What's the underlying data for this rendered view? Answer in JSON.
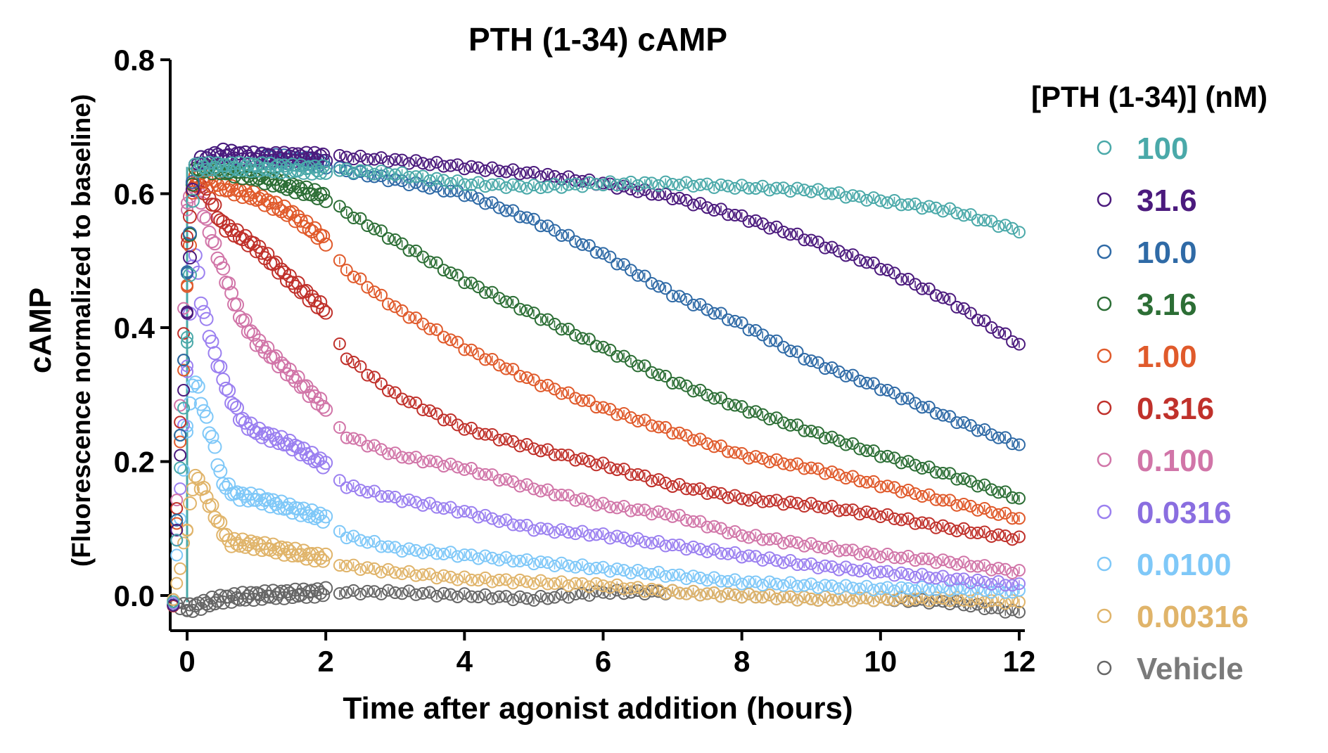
{
  "chart_data": {
    "type": "scatter",
    "title": "PTH (1-34) cAMP",
    "xlabel": "Time after agonist addition (hours)",
    "ylabel": "cAMP",
    "ylabel_sub": "(Fluorescence normalized to baseline)",
    "xlim": [
      -0.25,
      12
    ],
    "ylim": [
      -0.05,
      0.8
    ],
    "xticks": [
      "0",
      "2",
      "4",
      "6",
      "8",
      "10",
      "12"
    ],
    "xtick_values": [
      0,
      2,
      4,
      6,
      8,
      10,
      12
    ],
    "yticks": [
      "0.0",
      "0.2",
      "0.4",
      "0.6",
      "0.8"
    ],
    "ytick_values": [
      0,
      0.2,
      0.4,
      0.6,
      0.8
    ],
    "grid": false,
    "legend_title": "[PTH (1-34)] (nM)",
    "legend_position": "right",
    "series": [
      {
        "name": "100",
        "color": "#4aa9a9",
        "x": [
          -0.2,
          0,
          0.1,
          0.5,
          1,
          2,
          2.25,
          3,
          4,
          5,
          6,
          7,
          8,
          9,
          10,
          11,
          12
        ],
        "y": [
          -0.01,
          0.38,
          0.64,
          0.64,
          0.64,
          0.635,
          0.635,
          0.63,
          0.615,
          0.61,
          0.615,
          0.615,
          0.61,
          0.605,
          0.59,
          0.575,
          0.545
        ]
      },
      {
        "name": "31.6",
        "color": "#4b1a7d",
        "x": [
          -0.2,
          0,
          0.1,
          0.5,
          1,
          2,
          2.25,
          3,
          4,
          5,
          6,
          7,
          8,
          9,
          10,
          11,
          12
        ],
        "y": [
          -0.01,
          0.42,
          0.645,
          0.66,
          0.655,
          0.655,
          0.655,
          0.65,
          0.64,
          0.63,
          0.615,
          0.595,
          0.565,
          0.53,
          0.49,
          0.44,
          0.375
        ]
      },
      {
        "name": "10.0",
        "color": "#2f6aa6",
        "x": [
          -0.2,
          0,
          0.1,
          0.5,
          1,
          2,
          2.25,
          3,
          4,
          5,
          6,
          7,
          8,
          9,
          10,
          11,
          12
        ],
        "y": [
          -0.01,
          0.48,
          0.645,
          0.66,
          0.655,
          0.645,
          0.635,
          0.62,
          0.6,
          0.56,
          0.51,
          0.45,
          0.405,
          0.35,
          0.31,
          0.265,
          0.225
        ]
      },
      {
        "name": "3.16",
        "color": "#2c6e35",
        "x": [
          -0.2,
          0,
          0.1,
          0.5,
          1,
          2,
          2.25,
          3,
          4,
          5,
          6,
          7,
          8,
          9,
          10,
          11,
          12
        ],
        "y": [
          -0.01,
          0.48,
          0.64,
          0.635,
          0.625,
          0.595,
          0.575,
          0.53,
          0.47,
          0.42,
          0.37,
          0.32,
          0.28,
          0.245,
          0.21,
          0.18,
          0.145
        ]
      },
      {
        "name": "1.00",
        "color": "#e05a2b",
        "x": [
          -0.2,
          0,
          0.1,
          0.5,
          1,
          1.5,
          2,
          2.25,
          3,
          4,
          5,
          6,
          7,
          8,
          9,
          10,
          11,
          12
        ],
        "y": [
          -0.01,
          0.46,
          0.63,
          0.61,
          0.595,
          0.57,
          0.53,
          0.49,
          0.43,
          0.37,
          0.32,
          0.28,
          0.245,
          0.21,
          0.19,
          0.165,
          0.14,
          0.115
        ]
      },
      {
        "name": "0.316",
        "color": "#c0312b",
        "x": [
          -0.2,
          0,
          0.1,
          0.3,
          0.5,
          1,
          1.5,
          2,
          2.25,
          3,
          4,
          5,
          6,
          7,
          8,
          9,
          10,
          11,
          12
        ],
        "y": [
          -0.01,
          0.53,
          0.62,
          0.6,
          0.555,
          0.52,
          0.47,
          0.425,
          0.36,
          0.3,
          0.25,
          0.22,
          0.195,
          0.165,
          0.145,
          0.135,
          0.12,
          0.1,
          0.085
        ]
      },
      {
        "name": "0.100",
        "color": "#d175a8",
        "x": [
          -0.2,
          0,
          0.1,
          0.3,
          0.5,
          0.75,
          1,
          1.5,
          2,
          2.25,
          3,
          4,
          5,
          6,
          7,
          8,
          9,
          10,
          11,
          12
        ],
        "y": [
          -0.01,
          0.58,
          0.62,
          0.55,
          0.49,
          0.42,
          0.38,
          0.33,
          0.28,
          0.24,
          0.21,
          0.19,
          0.16,
          0.135,
          0.12,
          0.09,
          0.075,
          0.06,
          0.05,
          0.035
        ]
      },
      {
        "name": "0.0316",
        "color": "#9b80f0",
        "x": [
          -0.2,
          0,
          0.1,
          0.2,
          0.4,
          0.6,
          0.8,
          1,
          1.5,
          2,
          2.25,
          3,
          4,
          5,
          6,
          7,
          8,
          9,
          10,
          11,
          12
        ],
        "y": [
          -0.01,
          0.34,
          0.53,
          0.44,
          0.36,
          0.3,
          0.26,
          0.245,
          0.225,
          0.195,
          0.165,
          0.145,
          0.125,
          0.1,
          0.09,
          0.075,
          0.06,
          0.045,
          0.035,
          0.025,
          0.015
        ]
      },
      {
        "name": "0.0100",
        "color": "#7fc8f8",
        "x": [
          -0.2,
          0,
          0.1,
          0.2,
          0.4,
          0.5,
          0.7,
          1,
          1.5,
          2,
          2.25,
          3,
          4,
          5,
          6,
          7,
          8,
          9,
          10,
          11,
          12
        ],
        "y": [
          -0.01,
          0.25,
          0.33,
          0.29,
          0.22,
          0.17,
          0.15,
          0.145,
          0.13,
          0.115,
          0.09,
          0.07,
          0.06,
          0.05,
          0.04,
          0.03,
          0.02,
          0.015,
          0.01,
          0.01,
          0.005
        ]
      },
      {
        "name": "0.00316",
        "color": "#e0b46a",
        "x": [
          -0.2,
          0,
          0.1,
          0.2,
          0.4,
          0.6,
          1,
          1.5,
          2,
          2.25,
          3,
          4,
          5,
          6,
          7,
          8,
          9,
          10,
          11,
          12
        ],
        "y": [
          -0.01,
          0.1,
          0.18,
          0.165,
          0.12,
          0.08,
          0.075,
          0.065,
          0.055,
          0.045,
          0.035,
          0.025,
          0.02,
          0.015,
          0.005,
          0.0,
          -0.005,
          -0.005,
          -0.005,
          -0.01
        ]
      },
      {
        "name": "Vehicle",
        "color": "#666666",
        "x": [
          -0.2,
          0,
          0.5,
          1,
          2,
          3,
          4,
          5,
          6,
          7,
          8,
          9,
          10,
          11,
          12
        ],
        "y": [
          -0.01,
          -0.02,
          -0.005,
          0.0,
          0.005,
          0.005,
          0.0,
          -0.005,
          0.005,
          0.005,
          0.0,
          -0.005,
          -0.005,
          -0.01,
          -0.025
        ]
      }
    ]
  },
  "legend_text_colors": {
    "100": "#4aa9a9",
    "31.6": "#4b1a7d",
    "10.0": "#2f6aa6",
    "3.16": "#2c6e35",
    "1.00": "#e05a2b",
    "0.316": "#c0312b",
    "0.100": "#d175a8",
    "0.0316": "#8a6ee0",
    "0.0100": "#7fc8f8",
    "0.00316": "#e0b46a",
    "Vehicle": "#7a7a7a"
  }
}
